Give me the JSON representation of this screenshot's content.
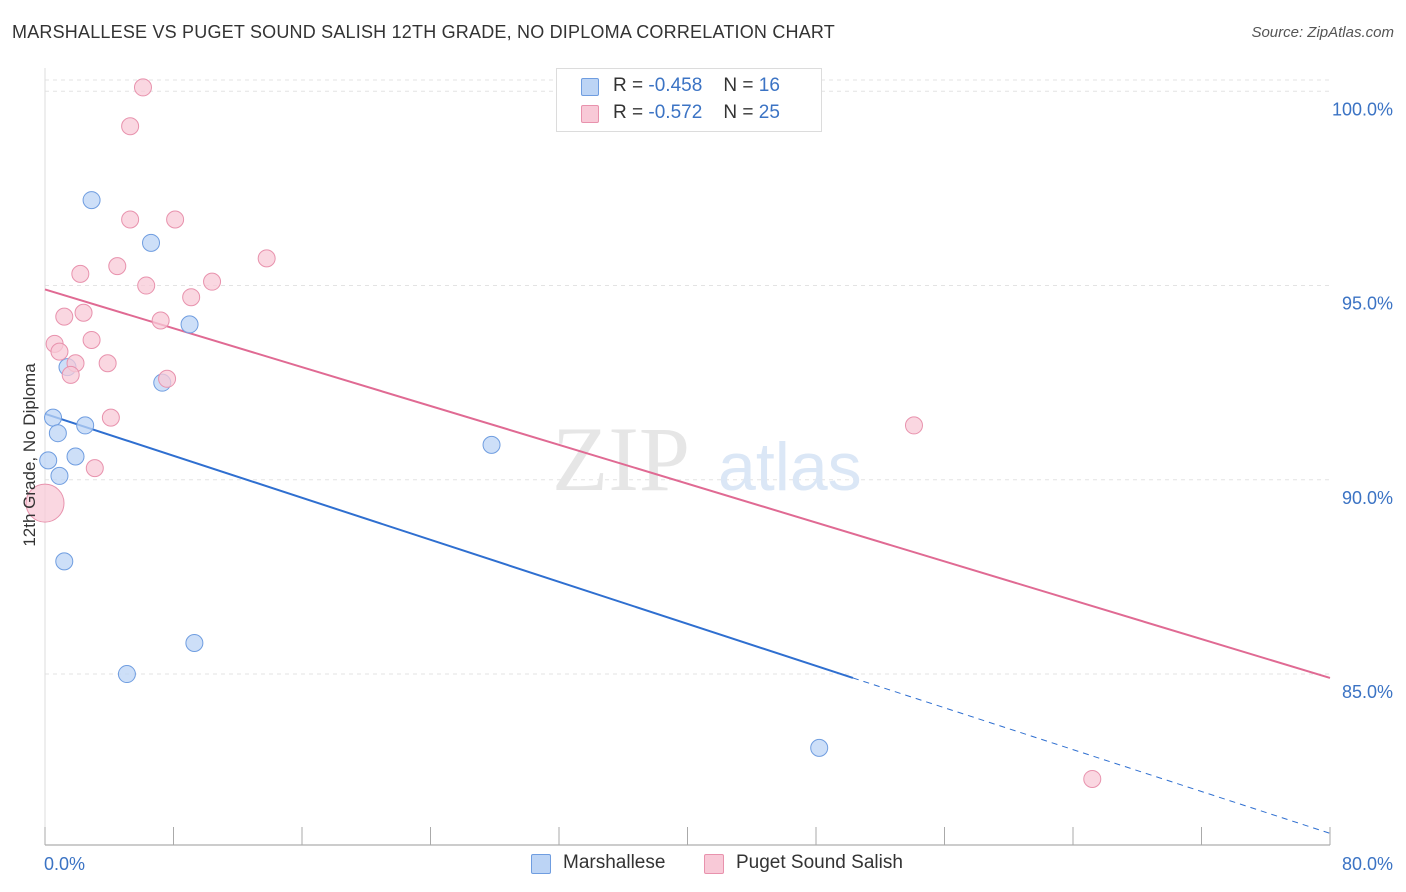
{
  "header": {
    "title": "MARSHALLESE VS PUGET SOUND SALISH 12TH GRADE, NO DIPLOMA CORRELATION CHART",
    "source": "Source: ZipAtlas.com"
  },
  "watermark": {
    "zip": "ZIP",
    "atlas": "atlas"
  },
  "stats": [
    {
      "r_label": "R =",
      "r": "-0.458",
      "n_label": "N =",
      "n": "16"
    },
    {
      "r_label": "R =",
      "r": "-0.572",
      "n_label": "N =",
      "n": "25"
    }
  ],
  "colors": {
    "marshallese_fill": "#bcd4f5",
    "marshallese_stroke": "#6f9de0",
    "marshallese_line": "#2f6fd0",
    "salish_fill": "#f8c9d7",
    "salish_stroke": "#e892ad",
    "salish_line": "#e06a93",
    "tick_label": "#3b73c4",
    "grid": "#e3e3e3"
  },
  "chart_data": {
    "type": "scatter",
    "title": "MARSHALLESE VS PUGET SOUND SALISH 12TH GRADE, NO DIPLOMA CORRELATION CHART",
    "xlabel": "",
    "ylabel": "12th Grade, No Diploma",
    "xlim": [
      0,
      80
    ],
    "ylim": [
      80.6,
      100.6
    ],
    "x_tick_labels": [
      "0.0%",
      "80.0%"
    ],
    "y_ticks": [
      100,
      95,
      90,
      85
    ],
    "y_tick_labels": [
      "100.0%",
      "95.0%",
      "90.0%",
      "85.0%"
    ],
    "grid": true,
    "legend_position": "bottom",
    "series": [
      {
        "name": "Marshallese",
        "r": -0.458,
        "n": 16,
        "points": [
          {
            "x": 2.9,
            "y": 97.2
          },
          {
            "x": 6.6,
            "y": 96.1
          },
          {
            "x": 9.0,
            "y": 94.0
          },
          {
            "x": 1.4,
            "y": 92.9
          },
          {
            "x": 7.3,
            "y": 92.5
          },
          {
            "x": 0.5,
            "y": 91.6
          },
          {
            "x": 0.8,
            "y": 91.2
          },
          {
            "x": 2.5,
            "y": 91.4
          },
          {
            "x": 1.9,
            "y": 90.6
          },
          {
            "x": 0.2,
            "y": 90.5
          },
          {
            "x": 0.9,
            "y": 90.1
          },
          {
            "x": 27.8,
            "y": 90.9
          },
          {
            "x": 1.2,
            "y": 87.9
          },
          {
            "x": 9.3,
            "y": 85.8
          },
          {
            "x": 5.1,
            "y": 85.0
          },
          {
            "x": 48.2,
            "y": 83.1
          }
        ],
        "trend": {
          "x0": 0,
          "y0": 91.7,
          "x1": 50.3,
          "y1": 84.9,
          "dash_x1": 80,
          "dash_y1": 80.9
        }
      },
      {
        "name": "Puget Sound Salish",
        "r": -0.572,
        "n": 25,
        "points": [
          {
            "x": 6.1,
            "y": 100.1
          },
          {
            "x": 5.3,
            "y": 99.1
          },
          {
            "x": 5.3,
            "y": 96.7
          },
          {
            "x": 8.1,
            "y": 96.7
          },
          {
            "x": 13.8,
            "y": 95.7
          },
          {
            "x": 4.5,
            "y": 95.5
          },
          {
            "x": 2.2,
            "y": 95.3
          },
          {
            "x": 6.3,
            "y": 95.0
          },
          {
            "x": 10.4,
            "y": 95.1
          },
          {
            "x": 9.1,
            "y": 94.7
          },
          {
            "x": 2.4,
            "y": 94.3
          },
          {
            "x": 1.2,
            "y": 94.2
          },
          {
            "x": 7.2,
            "y": 94.1
          },
          {
            "x": 2.9,
            "y": 93.6
          },
          {
            "x": 0.6,
            "y": 93.5
          },
          {
            "x": 0.9,
            "y": 93.3
          },
          {
            "x": 1.9,
            "y": 93.0
          },
          {
            "x": 3.9,
            "y": 93.0
          },
          {
            "x": 1.6,
            "y": 92.7
          },
          {
            "x": 7.6,
            "y": 92.6
          },
          {
            "x": 4.1,
            "y": 91.6
          },
          {
            "x": 54.1,
            "y": 91.4
          },
          {
            "x": 3.1,
            "y": 90.3
          },
          {
            "x": 0.0,
            "y": 89.4,
            "large": true
          },
          {
            "x": 65.2,
            "y": 82.3
          }
        ],
        "trend": {
          "x0": 0,
          "y0": 94.9,
          "x1": 80,
          "y1": 84.9
        }
      }
    ]
  }
}
